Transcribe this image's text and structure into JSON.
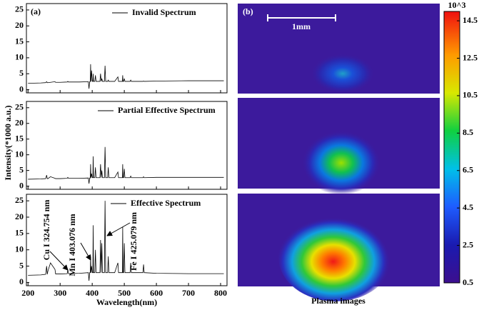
{
  "chart_data": [
    {
      "type": "line",
      "panel_label": "(a)",
      "x": [
        200,
        240,
        255,
        258,
        260,
        262,
        270,
        284,
        286,
        300,
        322,
        324,
        326,
        360,
        388,
        390,
        392,
        394,
        395,
        396,
        398,
        400,
        402,
        403,
        404,
        408,
        410,
        412,
        420,
        424,
        426,
        428,
        430,
        432,
        438,
        440,
        442,
        448,
        450,
        452,
        470,
        480,
        482,
        492,
        494,
        495,
        496,
        498,
        500,
        502,
        518,
        520,
        522,
        558,
        560,
        562,
        600,
        700,
        810
      ],
      "series": [
        {
          "name": "Invalid Spectrum",
          "color": "#000000",
          "values": [
            2,
            2.1,
            2.2,
            2.5,
            2.2,
            2.2,
            2.3,
            2.5,
            2.3,
            2.3,
            2.4,
            2.6,
            2.4,
            2.4,
            2.5,
            0.3,
            2.5,
            2.5,
            8,
            2.6,
            6,
            2.6,
            2.6,
            5,
            2.6,
            2.6,
            4.5,
            2.6,
            2.6,
            2.6,
            5,
            2.6,
            3.5,
            2.6,
            2.6,
            7.5,
            2.6,
            2.6,
            3,
            2.6,
            2.6,
            4,
            2.6,
            2.6,
            2.6,
            4.5,
            2.6,
            2.6,
            3.5,
            2.6,
            2.6,
            3,
            2.6,
            2.6,
            2.7,
            2.6,
            2.7,
            2.8,
            2.8
          ]
        }
      ],
      "xlim": [
        195,
        820
      ],
      "xticks": [
        200,
        300,
        400,
        500,
        600,
        700,
        800
      ],
      "ylim": [
        -1,
        27
      ],
      "yticks": [
        0,
        5,
        10,
        15,
        20,
        25
      ]
    },
    {
      "type": "line",
      "ylabel": "Intensity(*1000 a.u.)",
      "x": [
        200,
        240,
        255,
        258,
        260,
        262,
        270,
        284,
        286,
        300,
        322,
        324,
        326,
        360,
        388,
        390,
        392,
        394,
        395,
        396,
        398,
        400,
        402,
        403,
        404,
        408,
        410,
        412,
        420,
        424,
        426,
        428,
        430,
        432,
        438,
        440,
        442,
        448,
        450,
        452,
        470,
        480,
        482,
        492,
        494,
        495,
        496,
        498,
        500,
        502,
        518,
        520,
        522,
        558,
        560,
        562,
        600,
        700,
        810
      ],
      "series": [
        {
          "name": "Partial Effective Spectrum",
          "color": "#000000",
          "values": [
            2.2,
            2.3,
            2.4,
            3.5,
            2.4,
            2.4,
            3,
            2.5,
            2.4,
            2.4,
            2.5,
            2.8,
            2.5,
            2.5,
            2.6,
            0.8,
            2.6,
            2.6,
            7,
            2.7,
            4,
            2.7,
            2.7,
            9.5,
            2.7,
            2.7,
            6,
            2.7,
            2.7,
            2.7,
            7,
            2.7,
            5,
            2.7,
            2.7,
            12.5,
            2.7,
            2.7,
            6,
            2.7,
            2.7,
            4.5,
            2.7,
            2.7,
            2.7,
            7,
            2.7,
            2.7,
            5.5,
            2.7,
            2.7,
            3.2,
            2.7,
            2.7,
            3,
            2.7,
            2.8,
            2.8,
            2.8
          ]
        }
      ],
      "xlim": [
        195,
        820
      ],
      "xticks": [
        200,
        300,
        400,
        500,
        600,
        700,
        800
      ],
      "ylim": [
        -1,
        27
      ],
      "yticks": [
        0,
        5,
        10,
        15,
        20,
        25
      ]
    },
    {
      "type": "line",
      "xlabel": "Wavelength(nm)",
      "x": [
        200,
        240,
        255,
        258,
        260,
        262,
        270,
        284,
        286,
        300,
        322,
        324,
        326,
        360,
        388,
        390,
        392,
        394,
        395,
        396,
        398,
        400,
        402,
        403,
        404,
        408,
        410,
        412,
        420,
        424,
        426,
        428,
        430,
        432,
        438,
        440,
        442,
        448,
        450,
        452,
        470,
        480,
        482,
        492,
        494,
        495,
        496,
        498,
        500,
        502,
        518,
        520,
        522,
        558,
        560,
        562,
        600,
        700,
        810
      ],
      "series": [
        {
          "name": "Effective Spectrum",
          "color": "#000000",
          "values": [
            2.2,
            2.3,
            2.5,
            5,
            2.5,
            3.5,
            6,
            4,
            2.6,
            2.6,
            2.7,
            4,
            2.7,
            2.8,
            3,
            0.5,
            3,
            3,
            8,
            3,
            5,
            3,
            3,
            17.5,
            3,
            3,
            10,
            3,
            3,
            3,
            13,
            3,
            12,
            3,
            3,
            25,
            3,
            3,
            8,
            3,
            3,
            6,
            3,
            3,
            3,
            17,
            3,
            3,
            12,
            3,
            3,
            6,
            3,
            3,
            5.5,
            3,
            2.8,
            2.7,
            2.7
          ]
        }
      ],
      "annotations": [
        "Cu I 324.754 nm",
        "Mn I 403.076 nm",
        "Fe I 425.079 nm"
      ],
      "xlim": [
        195,
        820
      ],
      "xticks": [
        200,
        300,
        400,
        500,
        600,
        700,
        800
      ],
      "ylim": [
        -1,
        27
      ],
      "yticks": [
        0,
        5,
        10,
        15,
        20,
        25
      ]
    },
    {
      "type": "image",
      "panel_label": "(b)",
      "scale_bar_label": "1mm",
      "xlabel": "Plasma images",
      "colorbar": {
        "title": "10^3",
        "lim": [
          0.5,
          15
        ],
        "ticks": [
          0.5,
          2.5,
          4.5,
          6.5,
          8.5,
          10.5,
          12.5,
          14.5
        ]
      }
    }
  ]
}
